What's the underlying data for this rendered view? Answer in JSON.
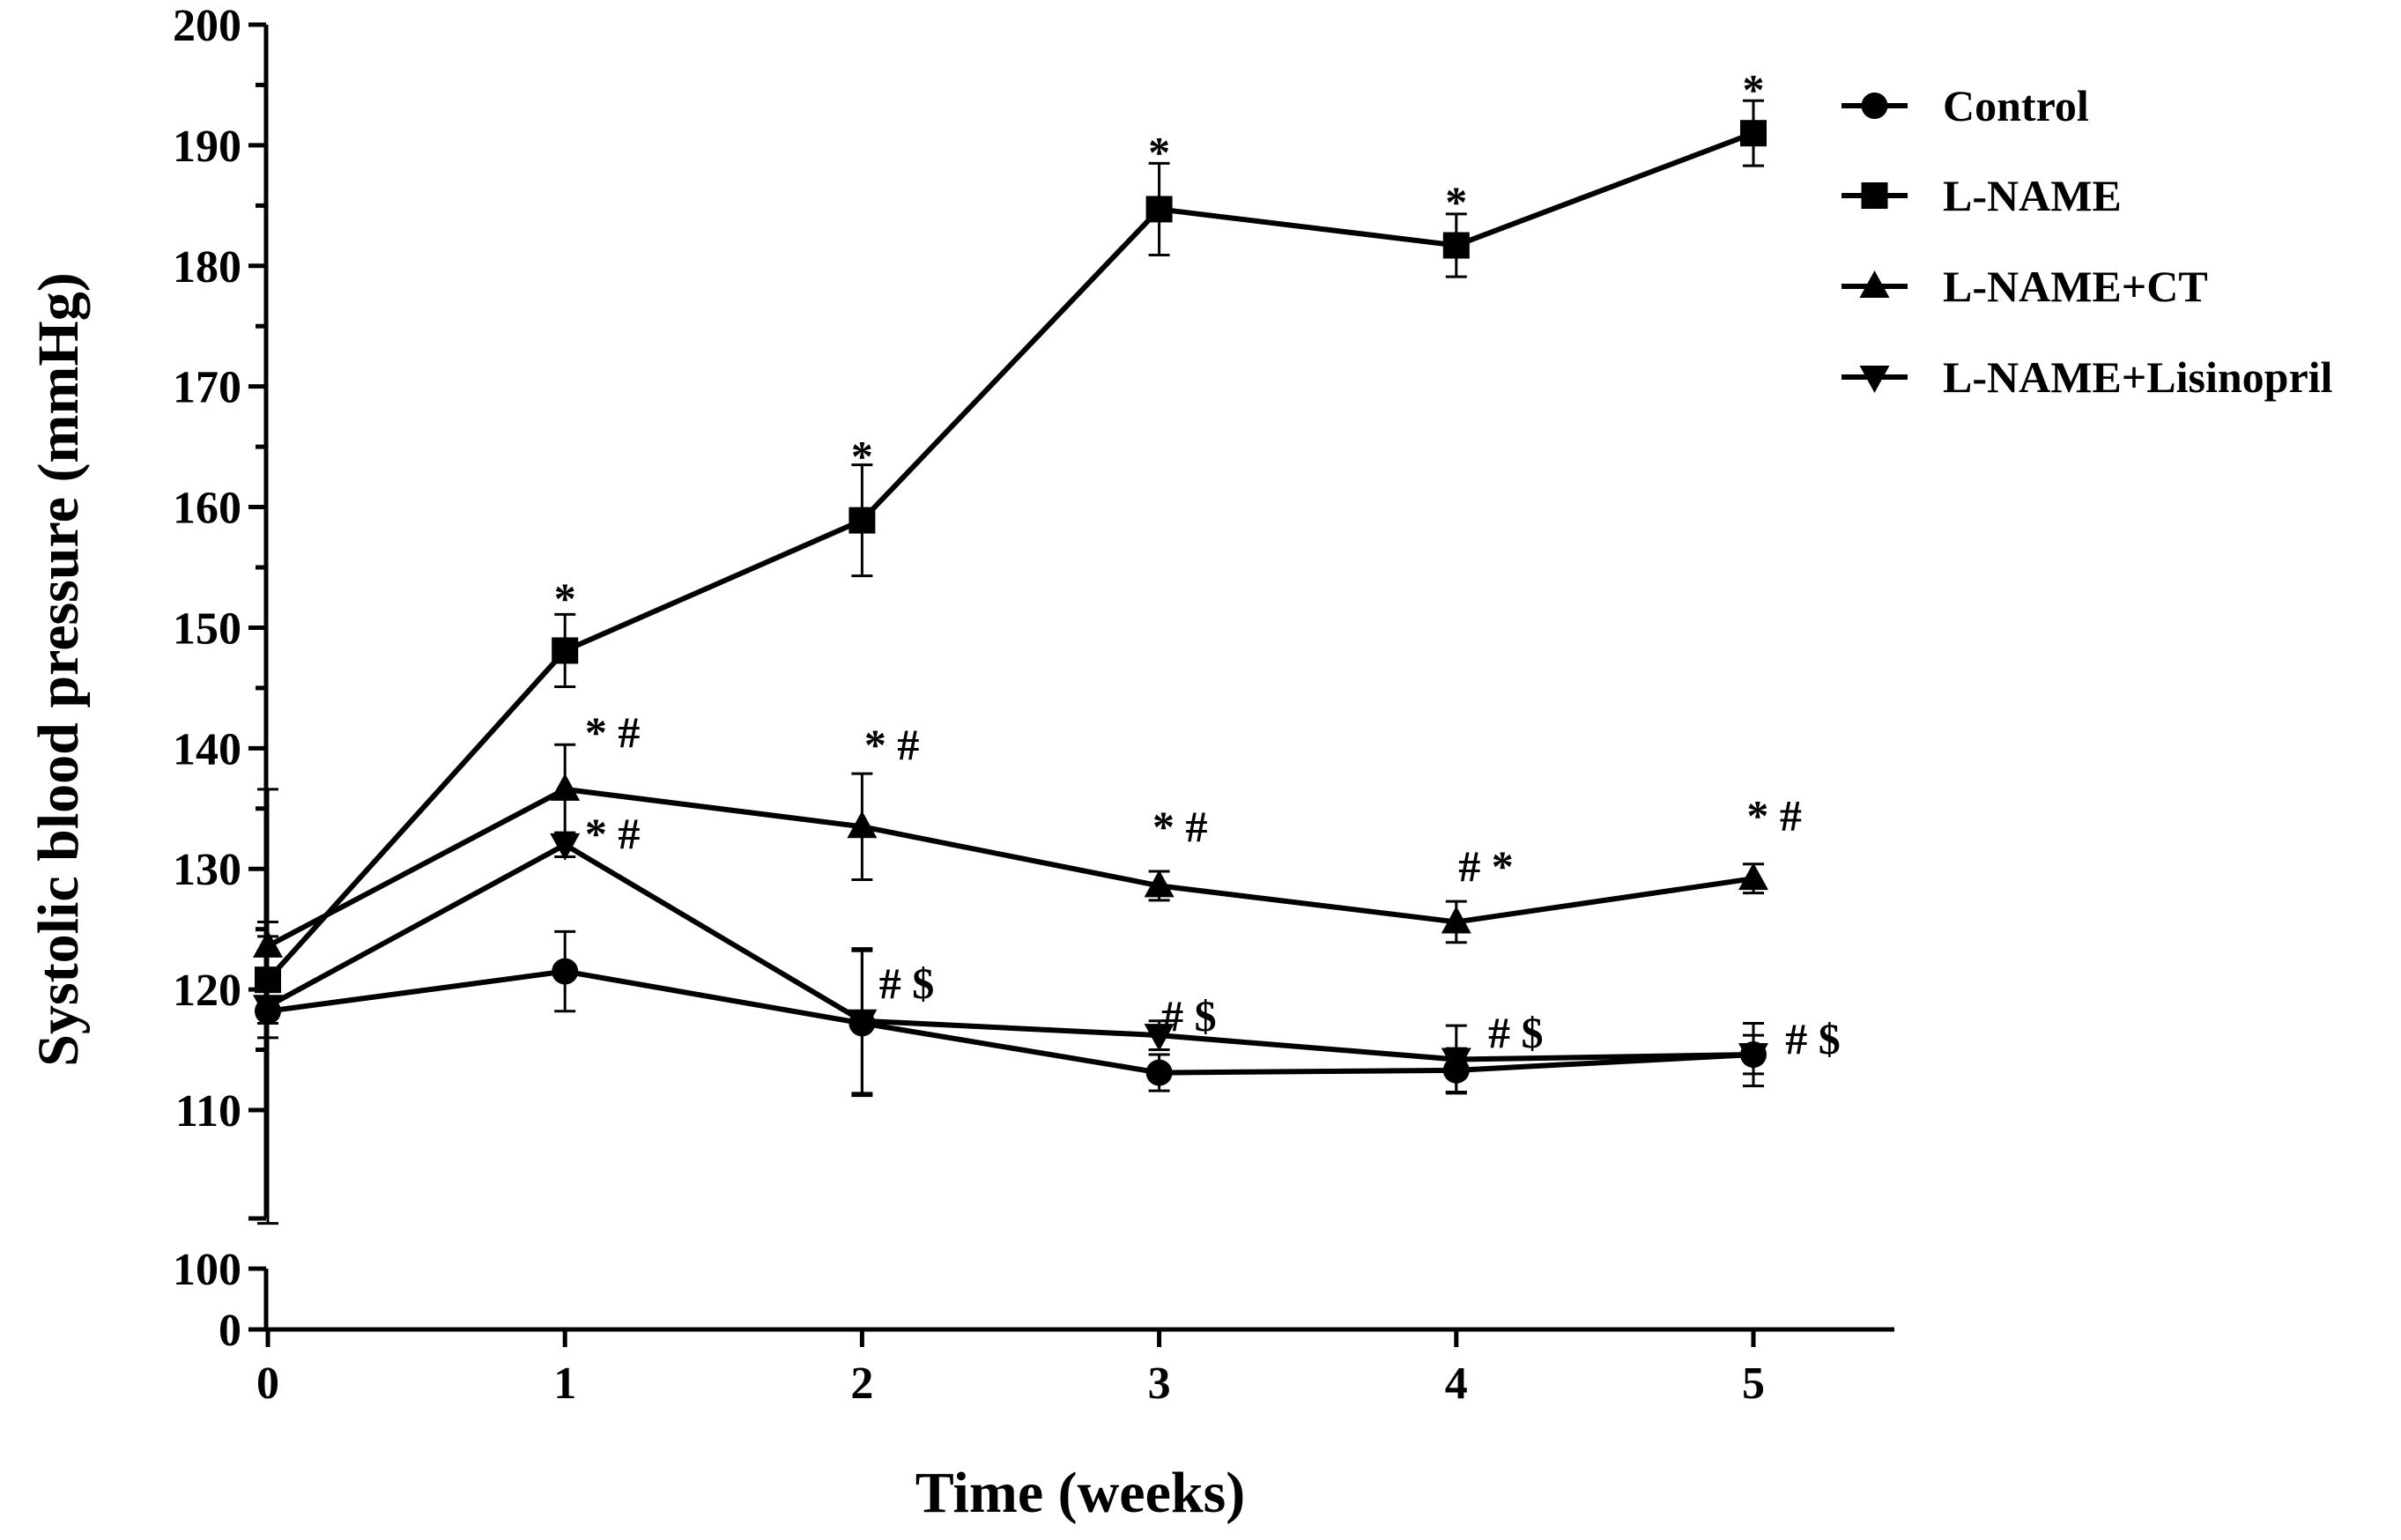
{
  "chart_data": {
    "type": "line",
    "title": "",
    "xlabel": "Time (weeks)",
    "ylabel": "Systolic blood pressure (mmHg)",
    "x": [
      0,
      1,
      2,
      3,
      4,
      5
    ],
    "x_tick_labels": [
      "0",
      "1",
      "2",
      "3",
      "4",
      "5"
    ],
    "ylim": [
      0,
      200
    ],
    "y_axis_break": {
      "lower_segment": [
        0,
        100
      ],
      "upper_segment": [
        100,
        200
      ]
    },
    "y_tick_labels_upper": [
      "110",
      "120",
      "130",
      "140",
      "150",
      "160",
      "170",
      "180",
      "190",
      "200"
    ],
    "y_tick_labels_lower": [
      "0",
      "100"
    ],
    "legend_position": "top-right",
    "series": [
      {
        "name": "Control",
        "marker": "circle",
        "values": [
          118.2,
          121.5,
          117.2,
          113.1,
          113.3,
          114.6
        ],
        "errors": [
          2.2,
          3.3,
          6.0,
          1.5,
          1.8,
          2.6
        ]
      },
      {
        "name": "L-NAME",
        "marker": "square",
        "values": [
          120.8,
          148.1,
          158.9,
          184.7,
          181.7,
          191.0
        ],
        "errors": [
          3.6,
          3.0,
          4.6,
          3.8,
          2.6,
          2.7
        ]
      },
      {
        "name": "L-NAME+CT",
        "marker": "triangle-up",
        "values": [
          123.6,
          136.6,
          133.5,
          128.6,
          125.6,
          129.2
        ],
        "errors": [
          2.0,
          3.7,
          4.4,
          1.2,
          1.7,
          1.2
        ]
      },
      {
        "name": "L-NAME+Lisinopril",
        "marker": "triangle-down",
        "values": [
          118.6,
          132.0,
          117.4,
          116.2,
          114.2,
          114.6
        ],
        "errors": [
          18.0,
          1.0,
          6.0,
          1.2,
          2.8,
          1.6
        ]
      }
    ],
    "annotations": [
      {
        "x": 1,
        "y": 152.5,
        "text": "*"
      },
      {
        "x": 2,
        "y": 164.3,
        "text": "*"
      },
      {
        "x": 3,
        "y": 189.5,
        "text": "*"
      },
      {
        "x": 4,
        "y": 185.4,
        "text": "*"
      },
      {
        "x": 5,
        "y": 194.7,
        "text": "*"
      },
      {
        "x": 1.16,
        "y": 141.4,
        "text": "* #"
      },
      {
        "x": 2.1,
        "y": 140.4,
        "text": "* #"
      },
      {
        "x": 3.07,
        "y": 133.6,
        "text": "* #"
      },
      {
        "x": 4.1,
        "y": 130.3,
        "text": "# *"
      },
      {
        "x": 5.07,
        "y": 134.5,
        "text": "* #"
      },
      {
        "x": 1.16,
        "y": 133.0,
        "text": "* #"
      },
      {
        "x": 2.15,
        "y": 120.6,
        "text": "# $"
      },
      {
        "x": 3.1,
        "y": 117.9,
        "text": "# $"
      },
      {
        "x": 4.2,
        "y": 116.5,
        "text": "# $"
      },
      {
        "x": 5.2,
        "y": 116.0,
        "text": "# $"
      }
    ]
  }
}
